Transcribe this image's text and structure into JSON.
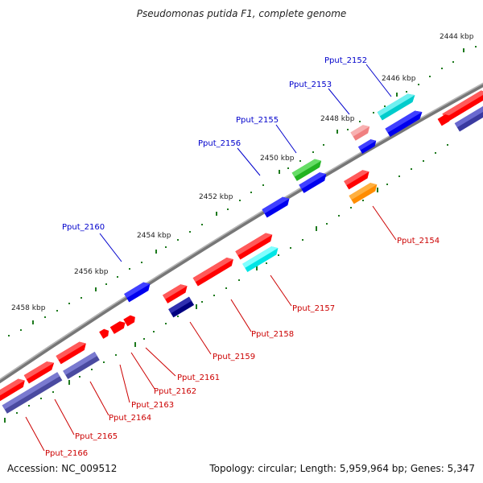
{
  "title": "Pseudomonas putida F1, complete genome",
  "footer": {
    "accession": "Accession: NC_009512",
    "topology": "Topology: circular; Length: 5,959,964 bp; Genes: 5,347"
  },
  "colors": {
    "backbone": "#888888",
    "tick": "#1e7a1e",
    "label_top": "#0000cc",
    "label_bottom": "#cc0000"
  },
  "kbp_labels": [
    "2444 kbp",
    "2446 kbp",
    "2448 kbp",
    "2450 kbp",
    "2452 kbp",
    "2454 kbp",
    "2456 kbp",
    "2458 kbp"
  ],
  "top_labels": [
    "Pput_2152",
    "Pput_2153",
    "Pput_2155",
    "Pput_2156",
    "Pput_2160"
  ],
  "bottom_labels": [
    "Pput_2154",
    "Pput_2157",
    "Pput_2158",
    "Pput_2159",
    "Pput_2161",
    "Pput_2162",
    "Pput_2163",
    "Pput_2164",
    "Pput_2165",
    "Pput_2166"
  ],
  "genes": [
    {
      "name": "gene-2152",
      "color": "cyan"
    },
    {
      "name": "gene-2153",
      "color": "salmon"
    },
    {
      "name": "gene-2154",
      "color": "orange"
    },
    {
      "name": "gene-2155",
      "color": "green"
    },
    {
      "name": "gene-2156",
      "color": "blue"
    },
    {
      "name": "gene-2157",
      "color": "cyan"
    },
    {
      "name": "gene-2158",
      "color": "red"
    },
    {
      "name": "gene-2159",
      "color": "navy"
    },
    {
      "name": "gene-2160",
      "color": "blue"
    }
  ]
}
